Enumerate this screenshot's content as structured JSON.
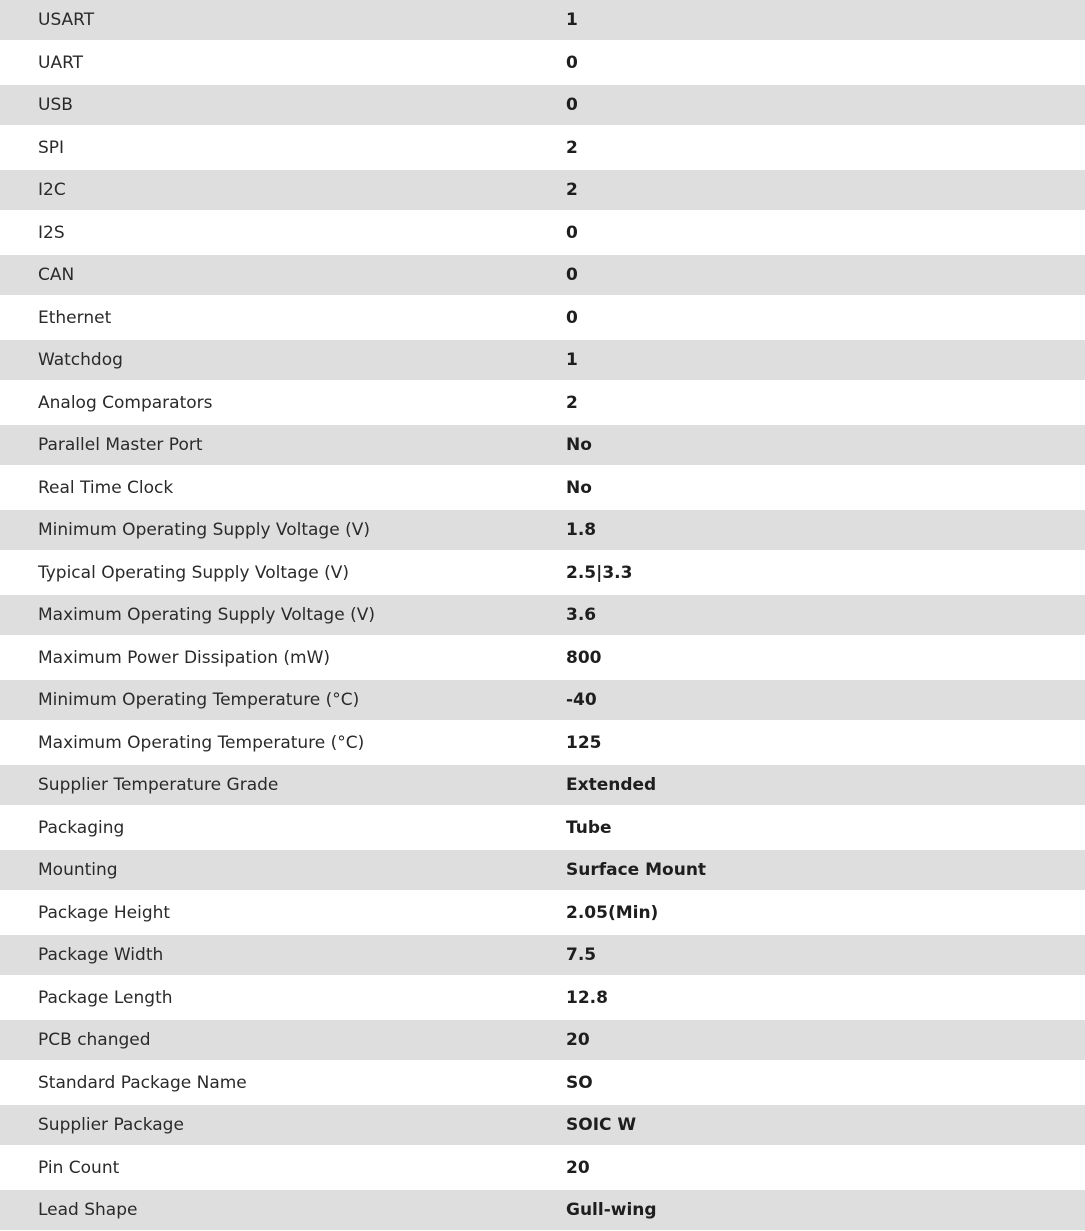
{
  "specs": [
    {
      "label": "USART",
      "value": "1"
    },
    {
      "label": "UART",
      "value": "0"
    },
    {
      "label": "USB",
      "value": "0"
    },
    {
      "label": "SPI",
      "value": "2"
    },
    {
      "label": "I2C",
      "value": "2"
    },
    {
      "label": "I2S",
      "value": "0"
    },
    {
      "label": "CAN",
      "value": "0"
    },
    {
      "label": "Ethernet",
      "value": "0"
    },
    {
      "label": "Watchdog",
      "value": "1"
    },
    {
      "label": "Analog Comparators",
      "value": "2"
    },
    {
      "label": "Parallel Master Port",
      "value": "No"
    },
    {
      "label": "Real Time Clock",
      "value": "No"
    },
    {
      "label": "Minimum Operating Supply Voltage (V)",
      "value": "1.8"
    },
    {
      "label": "Typical Operating Supply Voltage (V)",
      "value": "2.5|3.3"
    },
    {
      "label": "Maximum Operating Supply Voltage (V)",
      "value": "3.6"
    },
    {
      "label": "Maximum Power Dissipation (mW)",
      "value": "800"
    },
    {
      "label": "Minimum Operating Temperature (°C)",
      "value": "-40"
    },
    {
      "label": "Maximum Operating Temperature (°C)",
      "value": "125"
    },
    {
      "label": "Supplier Temperature Grade",
      "value": "Extended"
    },
    {
      "label": "Packaging",
      "value": "Tube"
    },
    {
      "label": "Mounting",
      "value": "Surface Mount"
    },
    {
      "label": "Package Height",
      "value": "2.05(Min)"
    },
    {
      "label": "Package Width",
      "value": "7.5"
    },
    {
      "label": "Package Length",
      "value": "12.8"
    },
    {
      "label": "PCB changed",
      "value": "20"
    },
    {
      "label": "Standard Package Name",
      "value": "SO"
    },
    {
      "label": "Supplier Package",
      "value": "SOIC W"
    },
    {
      "label": "Pin Count",
      "value": "20"
    },
    {
      "label": "Lead Shape",
      "value": "Gull-wing"
    }
  ]
}
